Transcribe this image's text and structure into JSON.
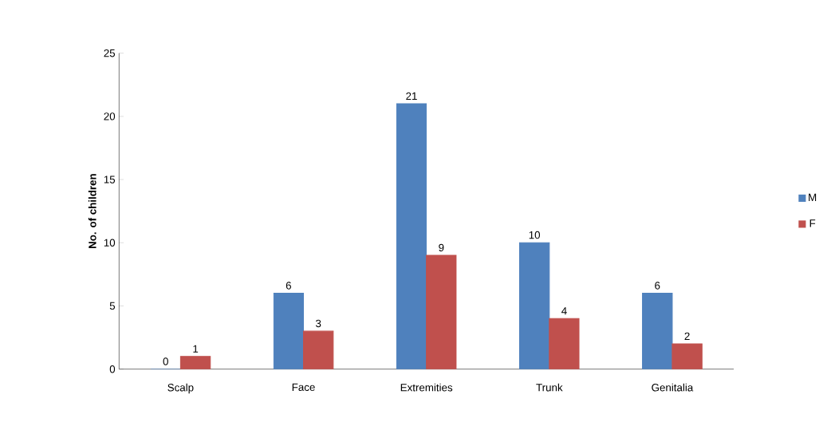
{
  "chart_data": {
    "type": "bar",
    "ylabel": "No. of children",
    "categories": [
      "Scalp",
      "Face",
      "Extremities",
      "Trunk",
      "Genitalia"
    ],
    "series": [
      {
        "name": "M",
        "color": "#4f81bd",
        "values": [
          0,
          6,
          21,
          10,
          6
        ]
      },
      {
        "name": "F",
        "color": "#c0504d",
        "values": [
          1,
          3,
          9,
          4,
          2
        ]
      }
    ],
    "ylim": [
      0,
      25
    ],
    "yticks": [
      0,
      5,
      10,
      15,
      20,
      25
    ],
    "data_labels": true,
    "legend": "right",
    "grid": false
  }
}
